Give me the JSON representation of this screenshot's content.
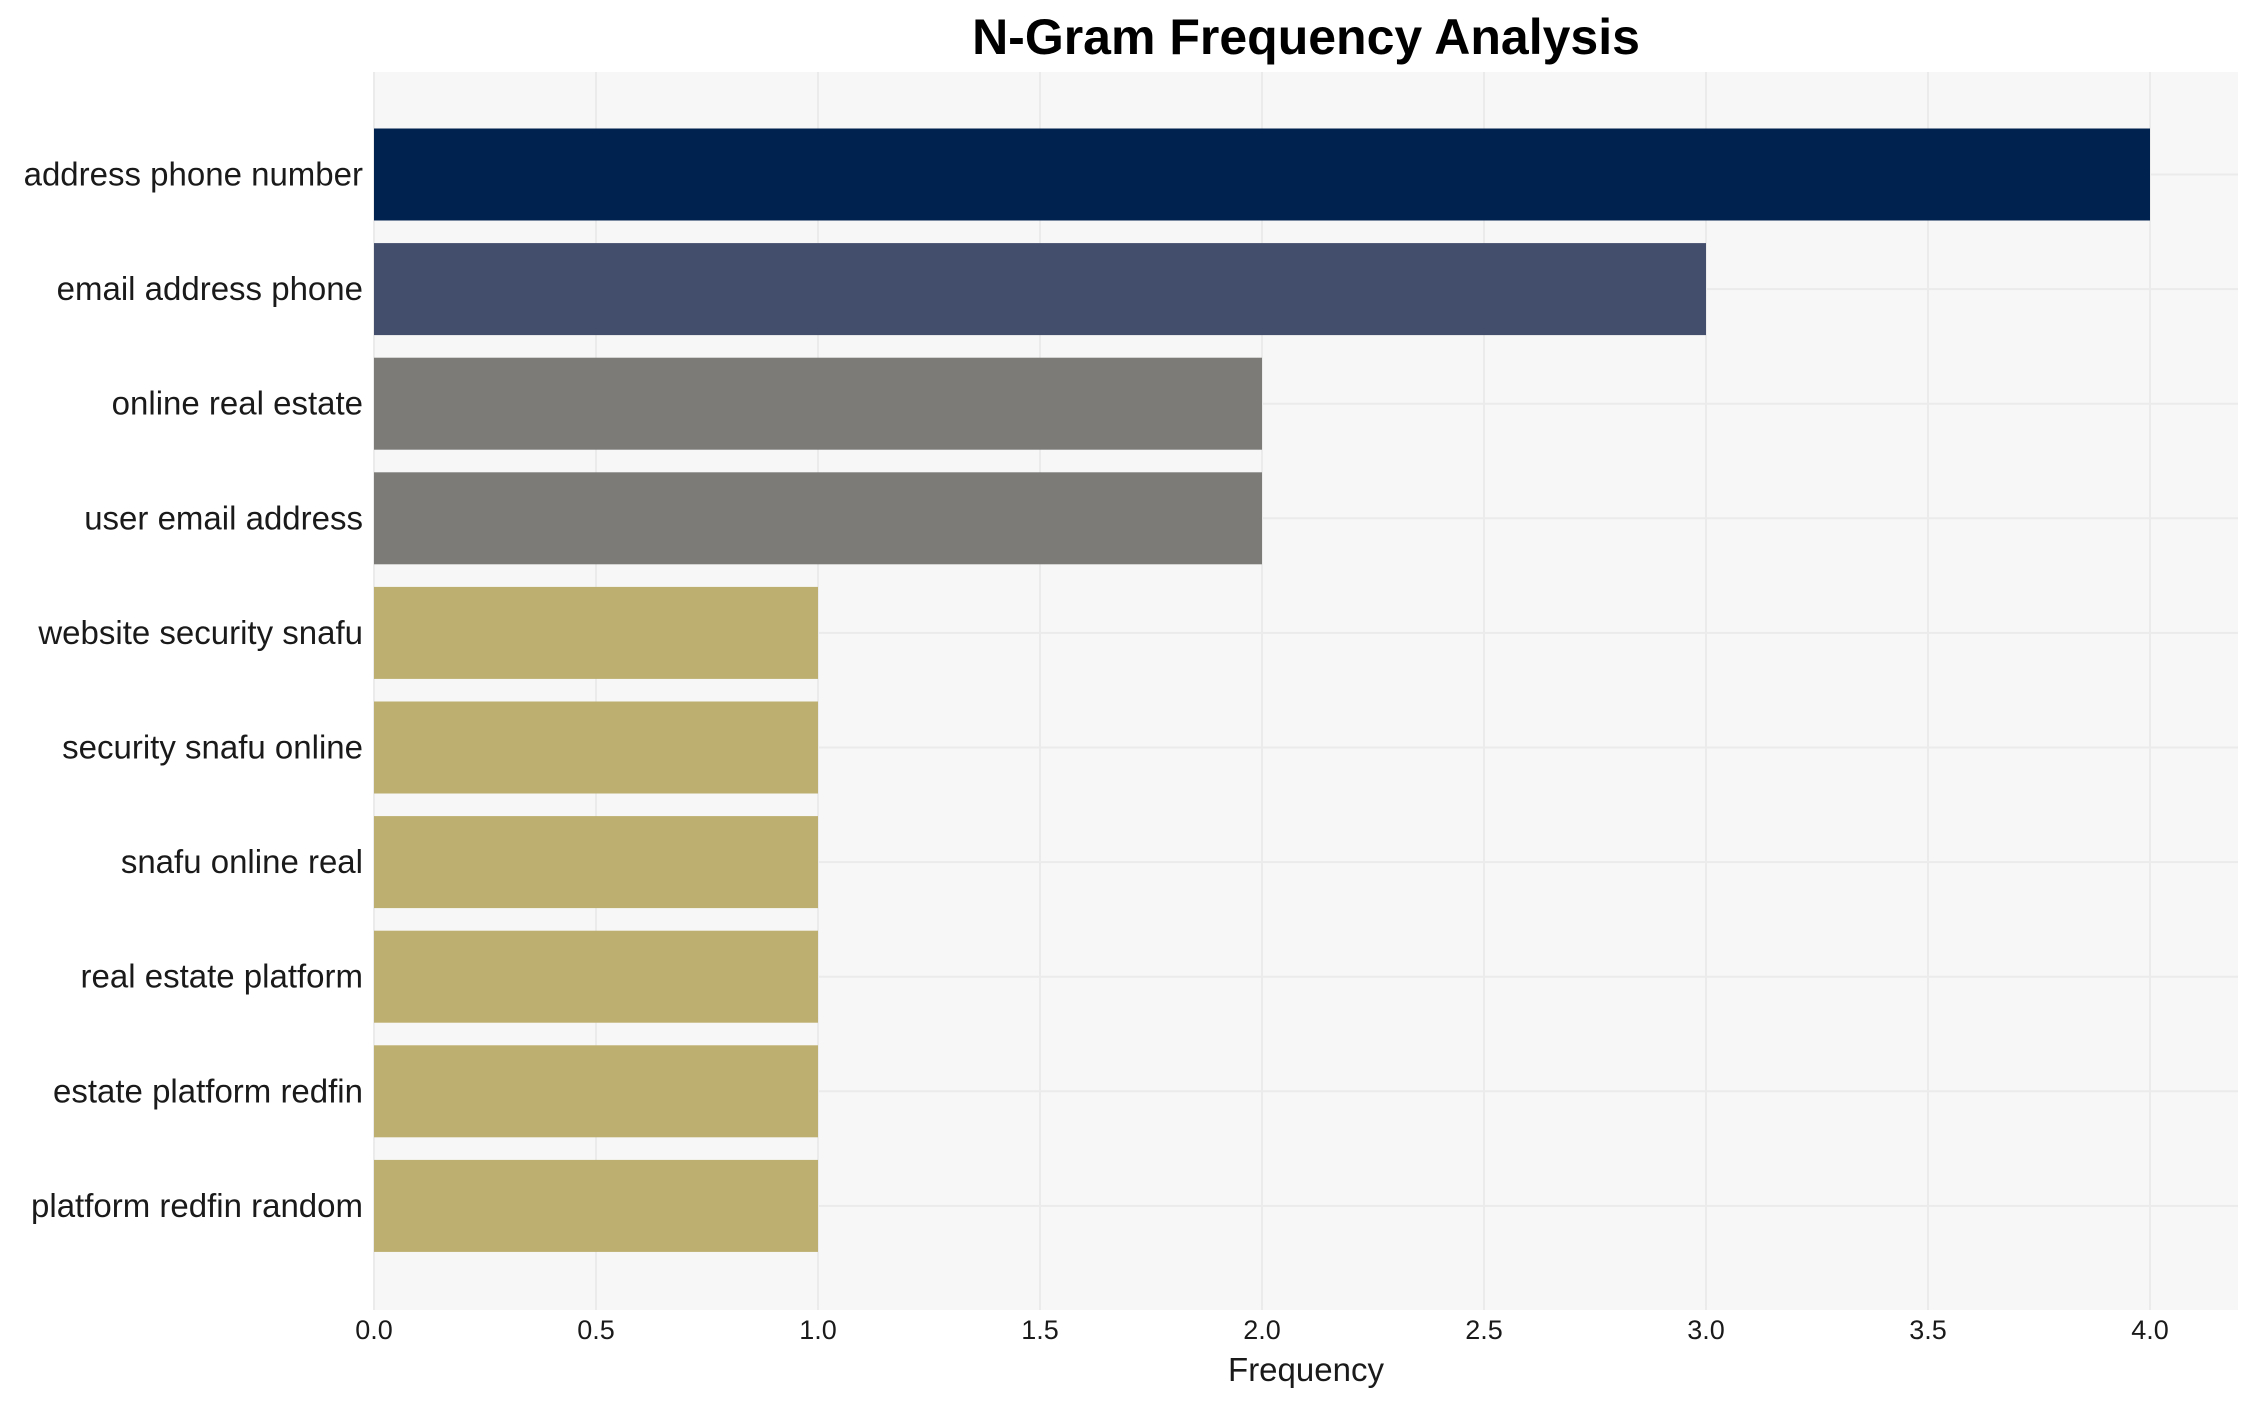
{
  "chart_data": {
    "type": "bar",
    "orientation": "horizontal",
    "title": "N-Gram Frequency Analysis",
    "xlabel": "Frequency",
    "ylabel": "",
    "xlim": [
      0,
      4.2
    ],
    "x_ticks": [
      "0.0",
      "0.5",
      "1.0",
      "1.5",
      "2.0",
      "2.5",
      "3.0",
      "3.5",
      "4.0"
    ],
    "grid": true,
    "categories": [
      "address phone number",
      "email address phone",
      "online real estate",
      "user email address",
      "website security snafu",
      "security snafu online",
      "snafu online real",
      "real estate platform",
      "estate platform redfin",
      "platform redfin random"
    ],
    "values": [
      4,
      3,
      2,
      2,
      1,
      1,
      1,
      1,
      1,
      1
    ],
    "colors": [
      "#00224e",
      "#434e6c",
      "#7c7b78",
      "#7c7b78",
      "#bcaf6f",
      "#bcaf6f",
      "#bcaf6f",
      "#bcaf6f",
      "#bcaf6f",
      "#bcaf6f"
    ],
    "plot_background": "#f7f7f7"
  }
}
